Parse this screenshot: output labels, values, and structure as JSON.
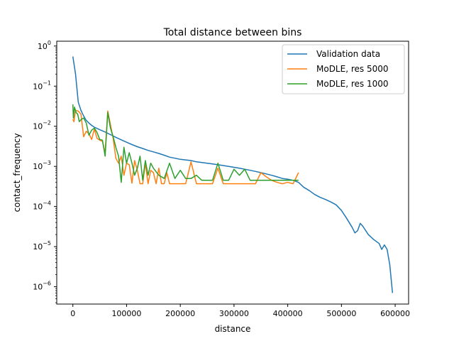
{
  "chart_data": {
    "type": "line",
    "title": "Total distance between bins",
    "xlabel": "distance",
    "ylabel": "contact_frequency",
    "yscale": "log",
    "grid": false,
    "legend_position": "top-right",
    "xlim": [
      -30000,
      625000
    ],
    "ylim": [
      3.7e-07,
      1.32
    ],
    "xticks": [
      0,
      100000,
      200000,
      300000,
      400000,
      500000,
      600000
    ],
    "xtick_labels": [
      "0",
      "100000",
      "200000",
      "300000",
      "400000",
      "500000",
      "600000"
    ],
    "ytick_exponents": [
      -6,
      -5,
      -4,
      -3,
      -2,
      -1,
      0
    ],
    "series": [
      {
        "name": "Validation data",
        "color": "#1f77b4",
        "x": [
          0,
          5000,
          10000,
          15000,
          20000,
          25000,
          30000,
          35000,
          40000,
          50000,
          60000,
          70000,
          80000,
          90000,
          100000,
          110000,
          120000,
          130000,
          140000,
          150000,
          160000,
          170000,
          180000,
          190000,
          200000,
          210000,
          220000,
          230000,
          240000,
          250000,
          260000,
          270000,
          280000,
          290000,
          300000,
          310000,
          320000,
          330000,
          340000,
          350000,
          360000,
          370000,
          380000,
          390000,
          400000,
          410000,
          420000,
          430000,
          440000,
          450000,
          460000,
          470000,
          480000,
          490000,
          500000,
          510000,
          520000,
          525000,
          530000,
          535000,
          540000,
          550000,
          560000,
          570000,
          575000,
          580000,
          585000,
          590000,
          595000
        ],
        "y": [
          0.55,
          0.2,
          0.04,
          0.025,
          0.018,
          0.014,
          0.012,
          0.0105,
          0.0095,
          0.0082,
          0.0072,
          0.0062,
          0.0053,
          0.0046,
          0.004,
          0.0035,
          0.0031,
          0.0028,
          0.0025,
          0.0023,
          0.0021,
          0.0019,
          0.0017,
          0.0016,
          0.0015,
          0.00145,
          0.0014,
          0.0013,
          0.00125,
          0.0012,
          0.00115,
          0.0011,
          0.00105,
          0.001,
          0.00095,
          0.0009,
          0.00085,
          0.0008,
          0.00075,
          0.0007,
          0.00065,
          0.0006,
          0.00055,
          0.0005,
          0.00048,
          0.00045,
          0.0004,
          0.0003,
          0.00025,
          0.0002,
          0.00017,
          0.00015,
          0.00013,
          0.00011,
          8e-05,
          5e-05,
          3e-05,
          2.2e-05,
          2.5e-05,
          3.8e-05,
          3.2e-05,
          2e-05,
          1.5e-05,
          1.2e-05,
          8.5e-06,
          1.1e-05,
          8.5e-06,
          3.5e-06,
          7e-07
        ]
      },
      {
        "name": "MoDLE, res 5000",
        "color": "#ff7f0e",
        "x": [
          0,
          2000,
          5000,
          10000,
          15000,
          20000,
          25000,
          30000,
          35000,
          40000,
          45000,
          50000,
          55000,
          60000,
          65000,
          70000,
          75000,
          80000,
          85000,
          90000,
          95000,
          100000,
          105000,
          110000,
          115000,
          120000,
          125000,
          130000,
          135000,
          140000,
          145000,
          150000,
          155000,
          160000,
          165000,
          170000,
          175000,
          180000,
          185000,
          190000,
          195000,
          200000,
          210000,
          220000,
          230000,
          240000,
          250000,
          260000,
          270000,
          280000,
          290000,
          300000,
          310000,
          320000,
          330000,
          340000,
          350000,
          360000,
          370000,
          380000,
          390000,
          400000,
          410000,
          420000
        ],
        "y": [
          0.015,
          0.013,
          0.025,
          0.024,
          0.02,
          0.0055,
          0.0075,
          0.0065,
          0.0047,
          0.0085,
          0.005,
          0.0045,
          0.0042,
          0.0022,
          0.024,
          0.011,
          0.005,
          0.0016,
          0.0012,
          0.0018,
          0.0006,
          0.0012,
          0.0011,
          0.00038,
          0.0014,
          0.0008,
          0.00037,
          0.00037,
          0.0012,
          0.00037,
          0.0008,
          0.0007,
          0.00037,
          0.0009,
          0.00037,
          0.00037,
          0.0007,
          0.00037,
          0.00037,
          0.00037,
          0.00037,
          0.00037,
          0.00037,
          0.0013,
          0.00037,
          0.00037,
          0.00037,
          0.00037,
          0.0009,
          0.00037,
          0.00037,
          0.00037,
          0.00037,
          0.00037,
          0.00037,
          0.00037,
          0.0007,
          0.00055,
          0.00045,
          0.0004,
          0.00037,
          0.0004,
          0.00037,
          0.0007
        ]
      },
      {
        "name": "MoDLE, res 1000",
        "color": "#2ca02c",
        "x": [
          0,
          1000,
          3000,
          6000,
          9000,
          12000,
          16000,
          20000,
          25000,
          30000,
          35000,
          40000,
          45000,
          50000,
          55000,
          60000,
          65000,
          70000,
          75000,
          80000,
          85000,
          90000,
          95000,
          100000,
          105000,
          110000,
          115000,
          120000,
          125000,
          130000,
          135000,
          140000,
          145000,
          150000,
          160000,
          170000,
          180000,
          190000,
          200000,
          210000,
          220000,
          230000,
          240000,
          250000,
          260000,
          270000,
          280000,
          290000,
          300000,
          310000,
          320000,
          330000,
          340000,
          350000,
          360000,
          370000,
          380000,
          390000,
          400000,
          410000,
          420000
        ],
        "y": [
          0.035,
          0.016,
          0.03,
          0.022,
          0.02,
          0.013,
          0.015,
          0.016,
          0.012,
          0.006,
          0.008,
          0.009,
          0.007,
          0.0047,
          0.0045,
          0.0018,
          0.022,
          0.009,
          0.0055,
          0.003,
          0.0018,
          0.0004,
          0.003,
          0.0012,
          0.0022,
          0.0012,
          0.0006,
          0.0009,
          0.0018,
          0.00045,
          0.0014,
          0.0006,
          0.0012,
          0.0009,
          0.0006,
          0.0005,
          0.0012,
          0.0005,
          0.0008,
          0.0005,
          0.0005,
          0.0006,
          0.00045,
          0.00045,
          0.00045,
          0.0012,
          0.00045,
          0.00045,
          0.00085,
          0.0006,
          0.00085,
          0.00045,
          0.00045,
          0.00045,
          0.00045,
          0.00045,
          0.00045,
          0.00045,
          0.00045,
          0.00045,
          0.00045
        ]
      }
    ]
  }
}
